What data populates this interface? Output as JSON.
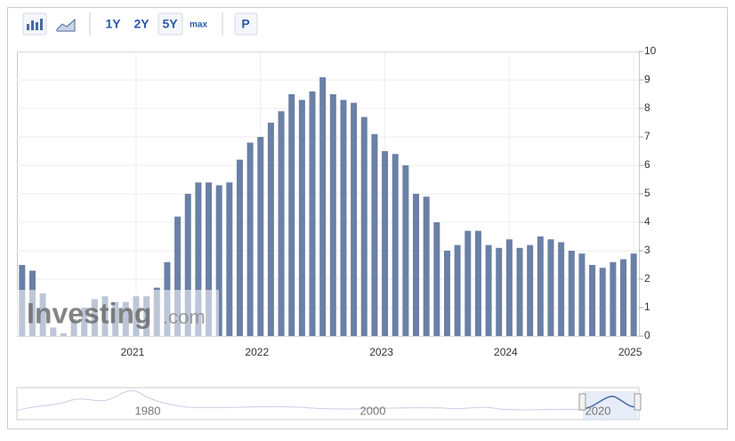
{
  "toolbar": {
    "buttons": [
      "1Y",
      "2Y",
      "5Y",
      "max",
      "P"
    ],
    "selected": "5Y"
  },
  "watermark": {
    "brand": "Investing",
    "suffix": ".com"
  },
  "chart_data": {
    "type": "bar",
    "color": "#6b80a6",
    "categories": [
      null,
      null,
      null,
      null,
      null,
      null,
      null,
      null,
      null,
      null,
      null,
      "2021",
      null,
      null,
      null,
      null,
      null,
      null,
      null,
      null,
      null,
      null,
      null,
      "2022",
      null,
      null,
      null,
      null,
      null,
      null,
      null,
      null,
      null,
      null,
      null,
      "2023",
      null,
      null,
      null,
      null,
      null,
      null,
      null,
      null,
      null,
      null,
      null,
      "2024",
      null,
      null,
      null,
      null,
      null,
      null,
      null,
      null,
      null,
      null,
      null,
      "2025"
    ],
    "values": [
      2.5,
      2.3,
      1.5,
      0.3,
      0.1,
      0.6,
      1.0,
      1.3,
      1.4,
      1.2,
      1.2,
      1.4,
      1.4,
      1.7,
      2.6,
      4.2,
      5.0,
      5.4,
      5.4,
      5.3,
      5.4,
      6.2,
      6.8,
      7.0,
      7.5,
      7.9,
      8.5,
      8.3,
      8.6,
      9.1,
      8.5,
      8.3,
      8.2,
      7.7,
      7.1,
      6.5,
      6.4,
      6.0,
      5.0,
      4.9,
      4.0,
      3.0,
      3.2,
      3.7,
      3.7,
      3.2,
      3.1,
      3.4,
      3.1,
      3.2,
      3.5,
      3.4,
      3.3,
      3.0,
      2.9,
      2.5,
      2.4,
      2.6,
      2.7,
      2.9
    ],
    "ylim": [
      0,
      10
    ],
    "yticks": [
      0,
      1,
      2,
      3,
      4,
      5,
      6,
      7,
      8,
      9,
      10
    ],
    "grid": true
  },
  "navigator": {
    "labels": [
      "1980",
      "2000",
      "2020"
    ]
  }
}
